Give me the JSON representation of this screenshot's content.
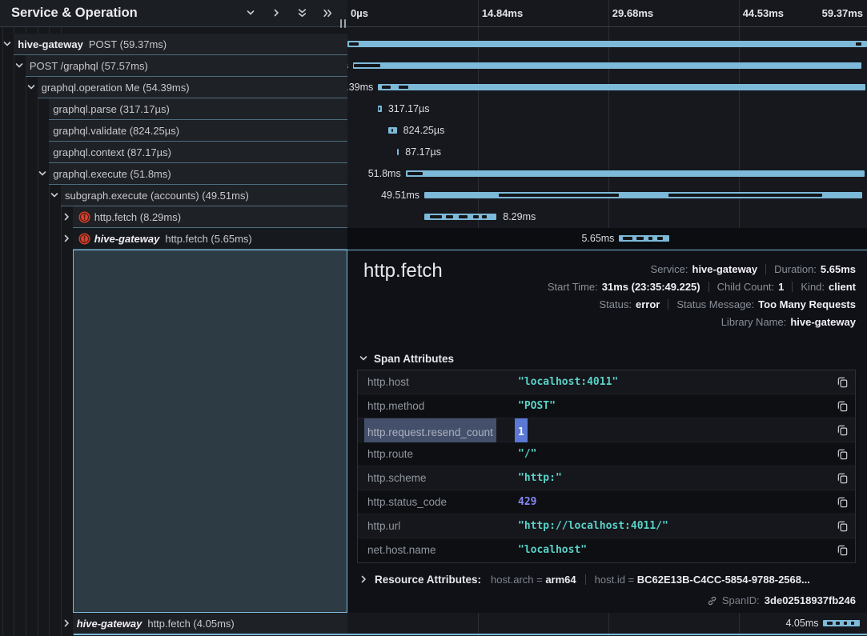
{
  "header": {
    "title": "Service & Operation",
    "icons": [
      "chevron-down-icon",
      "chevron-right-icon",
      "double-chevron-down-icon",
      "double-chevron-right-icon"
    ]
  },
  "timeline": {
    "ticks": [
      "0µs",
      "14.84ms",
      "29.68ms",
      "44.53ms",
      "59.37ms"
    ],
    "gridline_pcts": [
      25.1,
      50.2,
      75.3
    ],
    "total": "59.37ms"
  },
  "colors": {
    "bar": "#7db9d8",
    "accent_border": "#7db9d8",
    "error_icon": "#d8432f",
    "string_value": "#5ad2c8",
    "number_value": "#8589f0",
    "selection_key": "#44506b",
    "selection_value": "#5b79d4",
    "expansion_region": "#2c3b44"
  },
  "spans": [
    {
      "depth": 0,
      "chevron": "down",
      "service": "hive-gateway",
      "service_italic": false,
      "operation": "POST",
      "duration": "59.37ms",
      "error": false,
      "selected": false,
      "bottom": false,
      "bar": {
        "start": 0.0,
        "width": 100,
        "label": "59.37ms",
        "label_side": "left",
        "markers": [
          [
            0.3,
            1.8
          ],
          [
            97.9,
            1.1
          ]
        ]
      }
    },
    {
      "depth": 1,
      "chevron": "down",
      "service": null,
      "operation": "POST /graphql",
      "duration": "57.57ms",
      "error": false,
      "selected": false,
      "bottom": false,
      "bar": {
        "start": 1.1,
        "width": 97.9,
        "label": "57.57ms",
        "label_side": "left",
        "markers": [
          [
            0.2,
            5.2
          ]
        ]
      }
    },
    {
      "depth": 2,
      "chevron": "down",
      "service": null,
      "operation": "graphql.operation Me",
      "duration": "54.39ms",
      "error": false,
      "selected": false,
      "bottom": false,
      "bar": {
        "start": 5.9,
        "width": 93.8,
        "label": "54.39ms",
        "label_side": "left",
        "markers": [
          [
            0.7,
            1.9
          ],
          [
            4.2,
            2.0
          ]
        ]
      }
    },
    {
      "depth": 3,
      "chevron": null,
      "service": null,
      "operation": "graphql.parse",
      "duration": "317.17µs",
      "error": false,
      "selected": false,
      "bottom": false,
      "bar": {
        "start": 5.9,
        "width": 0.7,
        "label": "317.17µs",
        "label_side": "right",
        "markers": [
          [
            25,
            30
          ]
        ]
      }
    },
    {
      "depth": 3,
      "chevron": null,
      "service": null,
      "operation": "graphql.validate",
      "duration": "824.25µs",
      "error": false,
      "selected": false,
      "bottom": false,
      "bar": {
        "start": 7.9,
        "width": 1.6,
        "label": "824.25µs",
        "label_side": "right",
        "markers": [
          [
            32,
            28
          ]
        ]
      }
    },
    {
      "depth": 3,
      "chevron": null,
      "service": null,
      "operation": "graphql.context",
      "duration": "87.17µs",
      "error": false,
      "selected": false,
      "bottom": false,
      "bar": {
        "start": 9.5,
        "width": 0.4,
        "label": "87.17µs",
        "label_side": "right",
        "markers": []
      }
    },
    {
      "depth": 3,
      "chevron": "down",
      "service": null,
      "operation": "graphql.execute",
      "duration": "51.8ms",
      "error": false,
      "selected": false,
      "bottom": false,
      "bar": {
        "start": 11.2,
        "width": 88.4,
        "label": "51.8ms",
        "label_side": "left",
        "markers": [
          [
            0.4,
            3.4
          ]
        ]
      }
    },
    {
      "depth": 4,
      "chevron": "down",
      "service": null,
      "operation": "subgraph.execute (accounts)",
      "duration": "49.51ms",
      "error": false,
      "selected": false,
      "bottom": false,
      "bar": {
        "start": 14.8,
        "width": 84.3,
        "label": "49.51ms",
        "label_side": "left",
        "markers": [
          [
            17,
            27.5
          ],
          [
            55.8,
            35
          ]
        ]
      }
    },
    {
      "depth": 5,
      "chevron": "right",
      "service": null,
      "operation": "http.fetch",
      "duration": "8.29ms",
      "error": true,
      "selected": false,
      "bottom": false,
      "bar": {
        "start": 14.8,
        "width": 13.9,
        "label": "8.29ms",
        "label_side": "right",
        "markers": [
          [
            8,
            16
          ],
          [
            30,
            10
          ],
          [
            48,
            12
          ],
          [
            68,
            7
          ],
          [
            80,
            6
          ]
        ]
      }
    },
    {
      "depth": 5,
      "chevron": "right",
      "service": "hive-gateway",
      "service_italic": true,
      "operation": "http.fetch",
      "duration": "5.65ms",
      "error": true,
      "selected": true,
      "bottom": false,
      "bar": {
        "start": 52.3,
        "width": 9.7,
        "label": "5.65ms",
        "label_side": "left",
        "markers": [
          [
            8,
            18
          ],
          [
            34,
            14
          ],
          [
            58,
            8
          ],
          [
            76,
            10
          ]
        ]
      }
    },
    {
      "depth": 5,
      "chevron": "right",
      "service": "hive-gateway",
      "service_italic": true,
      "operation": "http.fetch",
      "duration": "4.05ms",
      "error": false,
      "selected": false,
      "bottom": true,
      "bar": {
        "start": 91.6,
        "width": 7.0,
        "label": "4.05ms",
        "label_side": "left",
        "markers": [
          [
            10,
            16
          ],
          [
            34,
            12
          ],
          [
            56,
            10
          ],
          [
            76,
            8
          ]
        ]
      }
    }
  ],
  "detail": {
    "title": "http.fetch",
    "meta": [
      [
        {
          "label": "Service:",
          "value": "hive-gateway"
        },
        {
          "label": "Duration:",
          "value": "5.65ms"
        }
      ],
      [
        {
          "label": "Start Time:",
          "value": "31ms (23:35:49.225)"
        },
        {
          "label": "Child Count:",
          "value": "1"
        },
        {
          "label": "Kind:",
          "value": "client"
        }
      ],
      [
        {
          "label": "Status:",
          "value": "error"
        },
        {
          "label": "Status Message:",
          "value": "Too Many Requests"
        }
      ],
      [
        {
          "label": "Library Name:",
          "value": "hive-gateway"
        }
      ]
    ],
    "span_attributes": {
      "header": "Span Attributes",
      "rows": [
        {
          "key": "http.host",
          "value": "\"localhost:4011\"",
          "type": "string",
          "selected": false
        },
        {
          "key": "http.method",
          "value": "\"POST\"",
          "type": "string",
          "selected": false
        },
        {
          "key": "http.request.resend_count",
          "value": "1",
          "type": "number",
          "selected": true
        },
        {
          "key": "http.route",
          "value": "\"/\"",
          "type": "string",
          "selected": false
        },
        {
          "key": "http.scheme",
          "value": "\"http:\"",
          "type": "string",
          "selected": false
        },
        {
          "key": "http.status_code",
          "value": "429",
          "type": "number",
          "selected": false
        },
        {
          "key": "http.url",
          "value": "\"http://localhost:4011/\"",
          "type": "string",
          "selected": false
        },
        {
          "key": "net.host.name",
          "value": "\"localhost\"",
          "type": "string",
          "selected": false
        }
      ]
    },
    "resource_attributes": {
      "header": "Resource Attributes:",
      "items": [
        {
          "key": "host.arch",
          "value": "arm64"
        },
        {
          "key": "host.id",
          "value": "BC62E13B-C4CC-5854-9788-2568..."
        }
      ]
    },
    "span_id": {
      "label": "SpanID:",
      "value": "3de02518937fb246"
    }
  }
}
